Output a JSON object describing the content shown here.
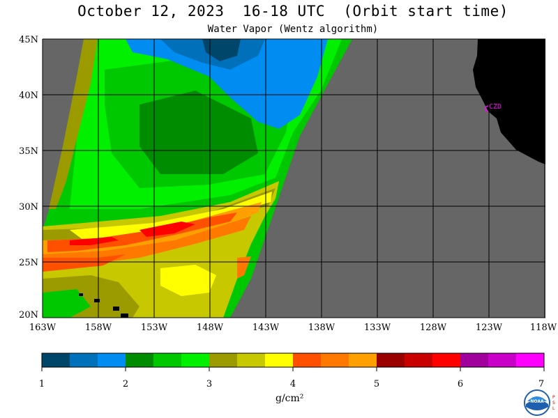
{
  "title": "October 12, 2023  16-18 UTC  (Orbit start time)",
  "subtitle": "Water Vapor (Wentz algorithm)",
  "map": {
    "lat_labels": [
      "45N",
      "40N",
      "35N",
      "30N",
      "25N",
      "20N"
    ],
    "lon_labels": [
      "163W",
      "158W",
      "153W",
      "148W",
      "143W",
      "138W",
      "133W",
      "128W",
      "123W",
      "118W"
    ],
    "station_label": "CZD",
    "colors": {
      "no_data": "#666666",
      "land": "#000000",
      "grid": "#000000",
      "station": "#ff00ff"
    }
  },
  "colorbar": {
    "ticks": [
      "1",
      "2",
      "3",
      "4",
      "5",
      "6",
      "7"
    ],
    "unit": "g/cm²",
    "colors": [
      "#00466b",
      "#0070bb",
      "#008cf0",
      "#008c00",
      "#00c800",
      "#00f000",
      "#9b9b00",
      "#c8c800",
      "#ffff00",
      "#ff5000",
      "#ff7800",
      "#ffa000",
      "#9b0000",
      "#c80000",
      "#ff0000",
      "#a0009b",
      "#c800c8",
      "#ff00ff"
    ]
  },
  "logo": {
    "text": "NOAA"
  }
}
